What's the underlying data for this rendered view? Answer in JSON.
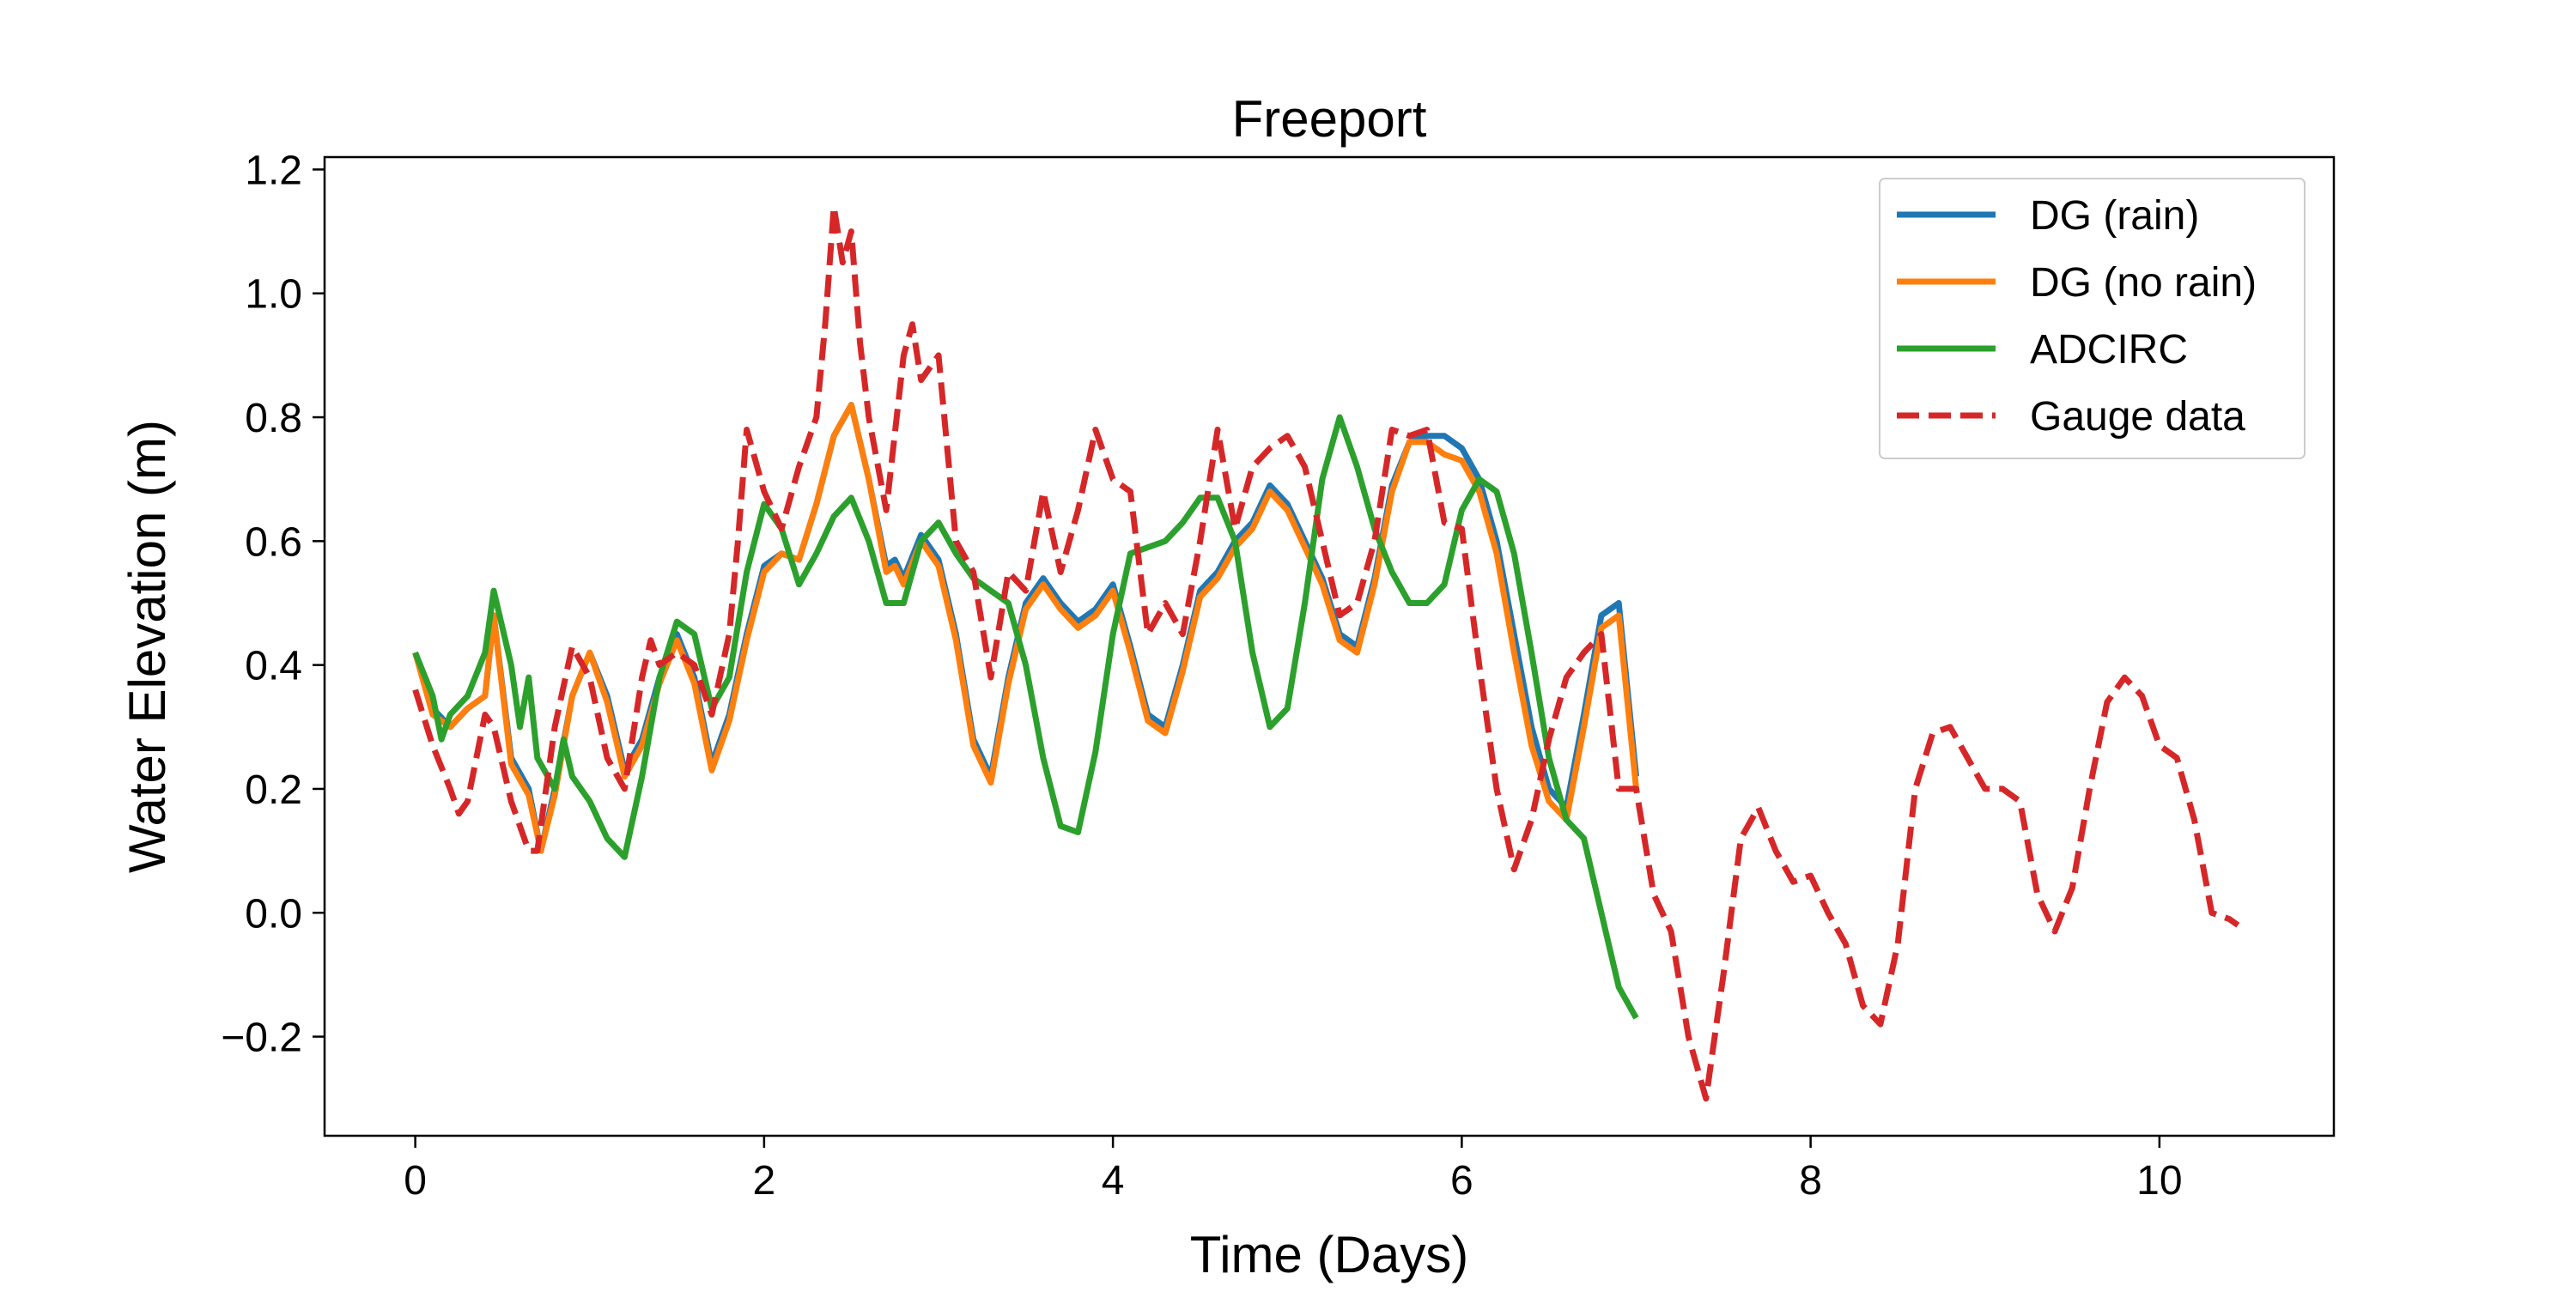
{
  "chart_data": {
    "type": "line",
    "title": "Freeport",
    "xlabel": "Time (Days)",
    "ylabel": "Water Elevation (m)",
    "xlim": [
      -0.52,
      11.0
    ],
    "ylim": [
      -0.36,
      1.22
    ],
    "xticks": [
      0,
      2,
      4,
      6,
      8,
      10
    ],
    "xtick_labels": [
      "0",
      "2",
      "4",
      "6",
      "8",
      "10"
    ],
    "yticks": [
      -0.2,
      0.0,
      0.2,
      0.4,
      0.6,
      0.8,
      1.0,
      1.2
    ],
    "ytick_labels": [
      "−0.2",
      "0.0",
      "0.2",
      "0.4",
      "0.6",
      "0.8",
      "1.0",
      "1.2"
    ],
    "grid": false,
    "legend_position": "top-right",
    "series": [
      {
        "name": "DG (rain)",
        "color": "#1f77b4",
        "dash": "solid",
        "x": [
          0,
          0.1,
          0.2,
          0.3,
          0.4,
          0.45,
          0.55,
          0.65,
          0.72,
          0.8,
          0.9,
          1.0,
          1.1,
          1.2,
          1.3,
          1.4,
          1.5,
          1.6,
          1.7,
          1.8,
          1.9,
          2.0,
          2.1,
          2.2,
          2.3,
          2.4,
          2.5,
          2.6,
          2.7,
          2.75,
          2.8,
          2.9,
          3.0,
          3.1,
          3.2,
          3.3,
          3.4,
          3.5,
          3.6,
          3.7,
          3.8,
          3.9,
          4.0,
          4.1,
          4.2,
          4.3,
          4.4,
          4.5,
          4.6,
          4.7,
          4.8,
          4.9,
          5.0,
          5.1,
          5.2,
          5.3,
          5.4,
          5.5,
          5.6,
          5.7,
          5.8,
          5.9,
          6.0,
          6.1,
          6.2,
          6.3,
          6.4,
          6.5,
          6.6,
          6.7,
          6.8,
          6.9,
          7.0
        ],
        "y": [
          0.42,
          0.33,
          0.3,
          0.33,
          0.35,
          0.48,
          0.25,
          0.2,
          0.1,
          0.2,
          0.35,
          0.42,
          0.35,
          0.23,
          0.28,
          0.38,
          0.45,
          0.38,
          0.24,
          0.32,
          0.45,
          0.56,
          0.58,
          0.57,
          0.66,
          0.77,
          0.82,
          0.7,
          0.56,
          0.57,
          0.54,
          0.61,
          0.57,
          0.45,
          0.28,
          0.22,
          0.38,
          0.5,
          0.54,
          0.5,
          0.47,
          0.49,
          0.53,
          0.43,
          0.32,
          0.3,
          0.4,
          0.52,
          0.55,
          0.6,
          0.63,
          0.69,
          0.66,
          0.6,
          0.54,
          0.45,
          0.43,
          0.54,
          0.69,
          0.76,
          0.77,
          0.77,
          0.75,
          0.7,
          0.6,
          0.45,
          0.3,
          0.2,
          0.17,
          0.32,
          0.48,
          0.5,
          0.22
        ]
      },
      {
        "name": "DG (no rain)",
        "color": "#ff7f0e",
        "dash": "solid",
        "x": [
          0,
          0.1,
          0.2,
          0.3,
          0.4,
          0.45,
          0.55,
          0.65,
          0.72,
          0.8,
          0.9,
          1.0,
          1.1,
          1.2,
          1.3,
          1.4,
          1.5,
          1.6,
          1.7,
          1.8,
          1.9,
          2.0,
          2.1,
          2.2,
          2.3,
          2.4,
          2.5,
          2.6,
          2.7,
          2.75,
          2.8,
          2.9,
          3.0,
          3.1,
          3.2,
          3.3,
          3.4,
          3.5,
          3.6,
          3.7,
          3.8,
          3.9,
          4.0,
          4.1,
          4.2,
          4.3,
          4.4,
          4.5,
          4.6,
          4.7,
          4.8,
          4.9,
          5.0,
          5.1,
          5.2,
          5.3,
          5.4,
          5.5,
          5.6,
          5.7,
          5.8,
          5.9,
          6.0,
          6.1,
          6.2,
          6.3,
          6.4,
          6.5,
          6.6,
          6.7,
          6.8,
          6.9,
          7.0
        ],
        "y": [
          0.42,
          0.32,
          0.3,
          0.33,
          0.35,
          0.48,
          0.24,
          0.19,
          0.1,
          0.19,
          0.35,
          0.42,
          0.34,
          0.22,
          0.27,
          0.37,
          0.44,
          0.37,
          0.23,
          0.31,
          0.44,
          0.55,
          0.58,
          0.57,
          0.66,
          0.77,
          0.82,
          0.7,
          0.55,
          0.56,
          0.53,
          0.6,
          0.56,
          0.44,
          0.27,
          0.21,
          0.37,
          0.49,
          0.53,
          0.49,
          0.46,
          0.48,
          0.52,
          0.42,
          0.31,
          0.29,
          0.39,
          0.51,
          0.54,
          0.59,
          0.62,
          0.68,
          0.65,
          0.59,
          0.53,
          0.44,
          0.42,
          0.53,
          0.68,
          0.76,
          0.76,
          0.74,
          0.73,
          0.68,
          0.58,
          0.42,
          0.27,
          0.18,
          0.15,
          0.3,
          0.46,
          0.48,
          0.2
        ]
      },
      {
        "name": "ADCIRC",
        "color": "#2ca02c",
        "dash": "solid",
        "x": [
          0,
          0.1,
          0.15,
          0.2,
          0.3,
          0.4,
          0.45,
          0.55,
          0.6,
          0.65,
          0.7,
          0.8,
          0.85,
          0.9,
          1.0,
          1.1,
          1.2,
          1.3,
          1.4,
          1.5,
          1.6,
          1.7,
          1.8,
          1.9,
          2.0,
          2.1,
          2.2,
          2.3,
          2.4,
          2.5,
          2.6,
          2.7,
          2.8,
          2.9,
          3.0,
          3.1,
          3.2,
          3.3,
          3.4,
          3.5,
          3.6,
          3.7,
          3.8,
          3.9,
          4.0,
          4.1,
          4.2,
          4.3,
          4.4,
          4.5,
          4.6,
          4.7,
          4.8,
          4.9,
          5.0,
          5.1,
          5.2,
          5.3,
          5.4,
          5.5,
          5.6,
          5.7,
          5.8,
          5.9,
          6.0,
          6.1,
          6.2,
          6.3,
          6.4,
          6.5,
          6.6,
          6.7,
          6.8,
          6.9,
          7.0
        ],
        "y": [
          0.42,
          0.35,
          0.28,
          0.32,
          0.35,
          0.42,
          0.52,
          0.4,
          0.3,
          0.38,
          0.25,
          0.2,
          0.28,
          0.22,
          0.18,
          0.12,
          0.09,
          0.22,
          0.38,
          0.47,
          0.45,
          0.33,
          0.38,
          0.55,
          0.66,
          0.62,
          0.53,
          0.58,
          0.64,
          0.67,
          0.6,
          0.5,
          0.5,
          0.6,
          0.63,
          0.58,
          0.54,
          0.52,
          0.5,
          0.4,
          0.25,
          0.14,
          0.13,
          0.26,
          0.45,
          0.58,
          0.59,
          0.6,
          0.63,
          0.67,
          0.67,
          0.6,
          0.42,
          0.3,
          0.33,
          0.5,
          0.7,
          0.8,
          0.72,
          0.62,
          0.55,
          0.5,
          0.5,
          0.53,
          0.65,
          0.7,
          0.68,
          0.58,
          0.42,
          0.25,
          0.15,
          0.12,
          0.0,
          -0.12,
          -0.17
        ]
      },
      {
        "name": "Gauge data",
        "color": "#d62728",
        "dash": "dashed",
        "x": [
          0,
          0.1,
          0.2,
          0.25,
          0.3,
          0.4,
          0.45,
          0.55,
          0.65,
          0.7,
          0.8,
          0.9,
          1.0,
          1.1,
          1.2,
          1.3,
          1.35,
          1.4,
          1.5,
          1.6,
          1.7,
          1.8,
          1.85,
          1.9,
          2.0,
          2.1,
          2.2,
          2.3,
          2.35,
          2.4,
          2.45,
          2.5,
          2.55,
          2.6,
          2.7,
          2.8,
          2.85,
          2.9,
          3.0,
          3.1,
          3.2,
          3.3,
          3.4,
          3.5,
          3.6,
          3.7,
          3.8,
          3.9,
          4.0,
          4.1,
          4.2,
          4.3,
          4.4,
          4.5,
          4.6,
          4.7,
          4.8,
          4.9,
          5.0,
          5.1,
          5.2,
          5.3,
          5.4,
          5.5,
          5.6,
          5.7,
          5.8,
          5.9,
          6.0,
          6.1,
          6.2,
          6.3,
          6.4,
          6.5,
          6.6,
          6.7,
          6.8,
          6.9,
          7.0,
          7.1,
          7.2,
          7.3,
          7.4,
          7.45,
          7.5,
          7.6,
          7.7,
          7.8,
          7.9,
          8.0,
          8.1,
          8.2,
          8.3,
          8.4,
          8.5,
          8.6,
          8.7,
          8.8,
          8.9,
          9.0,
          9.1,
          9.2,
          9.3,
          9.4,
          9.5,
          9.6,
          9.7,
          9.8,
          9.9,
          10.0,
          10.1,
          10.2,
          10.3,
          10.4,
          10.45
        ],
        "y": [
          0.36,
          0.27,
          0.2,
          0.16,
          0.18,
          0.32,
          0.3,
          0.18,
          0.1,
          0.1,
          0.3,
          0.43,
          0.38,
          0.25,
          0.2,
          0.38,
          0.44,
          0.4,
          0.42,
          0.4,
          0.32,
          0.45,
          0.6,
          0.78,
          0.68,
          0.62,
          0.72,
          0.8,
          0.95,
          1.14,
          1.05,
          1.1,
          0.92,
          0.8,
          0.65,
          0.9,
          0.95,
          0.86,
          0.9,
          0.6,
          0.55,
          0.38,
          0.55,
          0.52,
          0.68,
          0.55,
          0.65,
          0.78,
          0.7,
          0.68,
          0.45,
          0.5,
          0.45,
          0.6,
          0.78,
          0.62,
          0.72,
          0.75,
          0.77,
          0.72,
          0.6,
          0.48,
          0.5,
          0.6,
          0.78,
          0.77,
          0.78,
          0.63,
          0.62,
          0.4,
          0.2,
          0.07,
          0.15,
          0.28,
          0.38,
          0.42,
          0.45,
          0.2,
          0.2,
          0.03,
          -0.03,
          -0.2,
          -0.3,
          -0.2,
          -0.1,
          0.12,
          0.17,
          0.1,
          0.05,
          0.06,
          0.0,
          -0.05,
          -0.15,
          -0.18,
          -0.05,
          0.2,
          0.29,
          0.3,
          0.25,
          0.2,
          0.2,
          0.18,
          0.03,
          -0.03,
          0.04,
          0.2,
          0.34,
          0.38,
          0.35,
          0.27,
          0.25,
          0.15,
          0.0,
          -0.01,
          -0.02
        ]
      }
    ]
  }
}
